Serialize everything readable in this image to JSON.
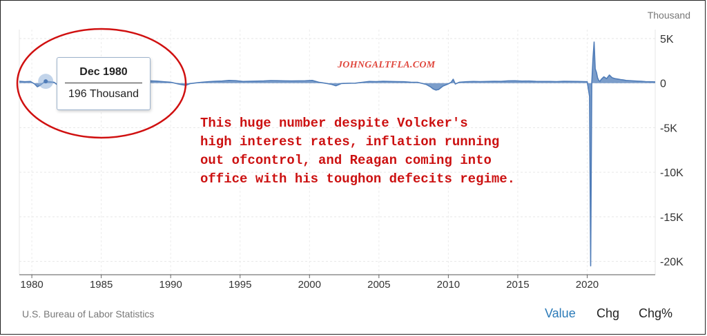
{
  "chart_data": {
    "type": "area",
    "unit_label": "Thousand",
    "y_ticks": [
      "5K",
      "0",
      "-5K",
      "-10K",
      "-15K",
      "-20K"
    ],
    "y_tick_values": [
      5000,
      0,
      -5000,
      -10000,
      -15000,
      -20000
    ],
    "ylim": [
      -21500,
      6000
    ],
    "x_ticks": [
      "1980",
      "1985",
      "1990",
      "1995",
      "2000",
      "2005",
      "2010",
      "2015",
      "2020"
    ],
    "x_tick_values": [
      1980,
      1985,
      1990,
      1995,
      2000,
      2005,
      2010,
      2015,
      2020
    ],
    "xlim": [
      1979.1,
      2024.9
    ],
    "grid": true,
    "series": [
      {
        "points": [
          [
            1979.1,
            200
          ],
          [
            1979.5,
            150
          ],
          [
            1979.9,
            180
          ],
          [
            1980.2,
            -100
          ],
          [
            1980.4,
            -420
          ],
          [
            1980.6,
            -250
          ],
          [
            1980.9,
            120
          ],
          [
            1981.0,
            196
          ],
          [
            1981.3,
            150
          ],
          [
            1981.6,
            90
          ],
          [
            1981.8,
            -150
          ],
          [
            1982.0,
            -250
          ],
          [
            1982.3,
            -200
          ],
          [
            1982.6,
            -180
          ],
          [
            1982.9,
            -100
          ],
          [
            1983.2,
            250
          ],
          [
            1983.6,
            350
          ],
          [
            1983.9,
            300
          ],
          [
            1984.3,
            330
          ],
          [
            1984.7,
            260
          ],
          [
            1985.0,
            270
          ],
          [
            1985.5,
            220
          ],
          [
            1986.0,
            200
          ],
          [
            1986.5,
            230
          ],
          [
            1987.0,
            260
          ],
          [
            1987.5,
            270
          ],
          [
            1988.0,
            280
          ],
          [
            1988.5,
            250
          ],
          [
            1989.0,
            220
          ],
          [
            1989.5,
            150
          ],
          [
            1990.0,
            100
          ],
          [
            1990.5,
            -80
          ],
          [
            1990.8,
            -180
          ],
          [
            1991.1,
            -250
          ],
          [
            1991.4,
            -60
          ],
          [
            1991.8,
            20
          ],
          [
            1992.2,
            80
          ],
          [
            1992.7,
            150
          ],
          [
            1993.2,
            200
          ],
          [
            1993.7,
            230
          ],
          [
            1994.2,
            300
          ],
          [
            1994.7,
            270
          ],
          [
            1995.2,
            180
          ],
          [
            1995.7,
            200
          ],
          [
            1996.2,
            220
          ],
          [
            1996.7,
            240
          ],
          [
            1997.2,
            280
          ],
          [
            1997.7,
            270
          ],
          [
            1998.2,
            250
          ],
          [
            1998.7,
            240
          ],
          [
            1999.2,
            250
          ],
          [
            1999.7,
            260
          ],
          [
            2000.2,
            300
          ],
          [
            2000.7,
            80
          ],
          [
            2001.2,
            -30
          ],
          [
            2001.6,
            -150
          ],
          [
            2001.9,
            -300
          ],
          [
            2002.3,
            -50
          ],
          [
            2002.8,
            -20
          ],
          [
            2003.3,
            -10
          ],
          [
            2003.8,
            80
          ],
          [
            2004.3,
            180
          ],
          [
            2004.8,
            170
          ],
          [
            2005.3,
            200
          ],
          [
            2005.8,
            180
          ],
          [
            2006.3,
            160
          ],
          [
            2006.8,
            150
          ],
          [
            2007.3,
            100
          ],
          [
            2007.8,
            80
          ],
          [
            2008.1,
            -30
          ],
          [
            2008.4,
            -150
          ],
          [
            2008.7,
            -400
          ],
          [
            2008.9,
            -650
          ],
          [
            2009.1,
            -780
          ],
          [
            2009.3,
            -720
          ],
          [
            2009.6,
            -350
          ],
          [
            2009.9,
            -150
          ],
          [
            2010.2,
            80
          ],
          [
            2010.35,
            430
          ],
          [
            2010.5,
            -100
          ],
          [
            2010.8,
            100
          ],
          [
            2011.3,
            150
          ],
          [
            2011.8,
            180
          ],
          [
            2012.3,
            170
          ],
          [
            2012.8,
            180
          ],
          [
            2013.3,
            200
          ],
          [
            2013.8,
            190
          ],
          [
            2014.3,
            250
          ],
          [
            2014.8,
            260
          ],
          [
            2015.3,
            220
          ],
          [
            2015.8,
            230
          ],
          [
            2016.3,
            190
          ],
          [
            2016.8,
            180
          ],
          [
            2017.3,
            180
          ],
          [
            2017.8,
            170
          ],
          [
            2018.3,
            200
          ],
          [
            2018.8,
            190
          ],
          [
            2019.3,
            180
          ],
          [
            2019.8,
            170
          ],
          [
            2020.0,
            150
          ],
          [
            2020.17,
            -1500
          ],
          [
            2020.25,
            -20500
          ],
          [
            2020.33,
            0
          ],
          [
            2020.42,
            2800
          ],
          [
            2020.5,
            4600
          ],
          [
            2020.58,
            1600
          ],
          [
            2020.67,
            1200
          ],
          [
            2020.75,
            600
          ],
          [
            2020.83,
            300
          ],
          [
            2020.92,
            200
          ],
          [
            2021.0,
            400
          ],
          [
            2021.2,
            700
          ],
          [
            2021.4,
            500
          ],
          [
            2021.6,
            900
          ],
          [
            2021.8,
            600
          ],
          [
            2022.0,
            500
          ],
          [
            2022.2,
            450
          ],
          [
            2022.4,
            400
          ],
          [
            2022.6,
            350
          ],
          [
            2022.8,
            300
          ],
          [
            2023.0,
            280
          ],
          [
            2023.3,
            250
          ],
          [
            2023.6,
            220
          ],
          [
            2023.9,
            200
          ],
          [
            2024.2,
            170
          ],
          [
            2024.5,
            150
          ],
          [
            2024.9,
            140
          ]
        ]
      }
    ],
    "tooltip": {
      "date": "Dec 1980",
      "value": "196 Thousand"
    },
    "highlight_point": [
      1981.0,
      196
    ]
  },
  "annotation": {
    "watermark": "JOHNGALTFLA.COM",
    "lines": [
      "This huge number despite Volcker's",
      "high interest rates, inflation running",
      "out ofcontrol, and Reagan coming into",
      "office with his toughon defecits regime."
    ],
    "circle_color": "#d01010",
    "text_color": "#cc1111"
  },
  "footer": {
    "source": "U.S. Bureau of Labor Statistics",
    "buttons": [
      "Value",
      "Chg",
      "Chg%"
    ],
    "active_button": "Value"
  },
  "colors": {
    "series": "#4f7cb8",
    "accent": "#2a7ab8"
  }
}
